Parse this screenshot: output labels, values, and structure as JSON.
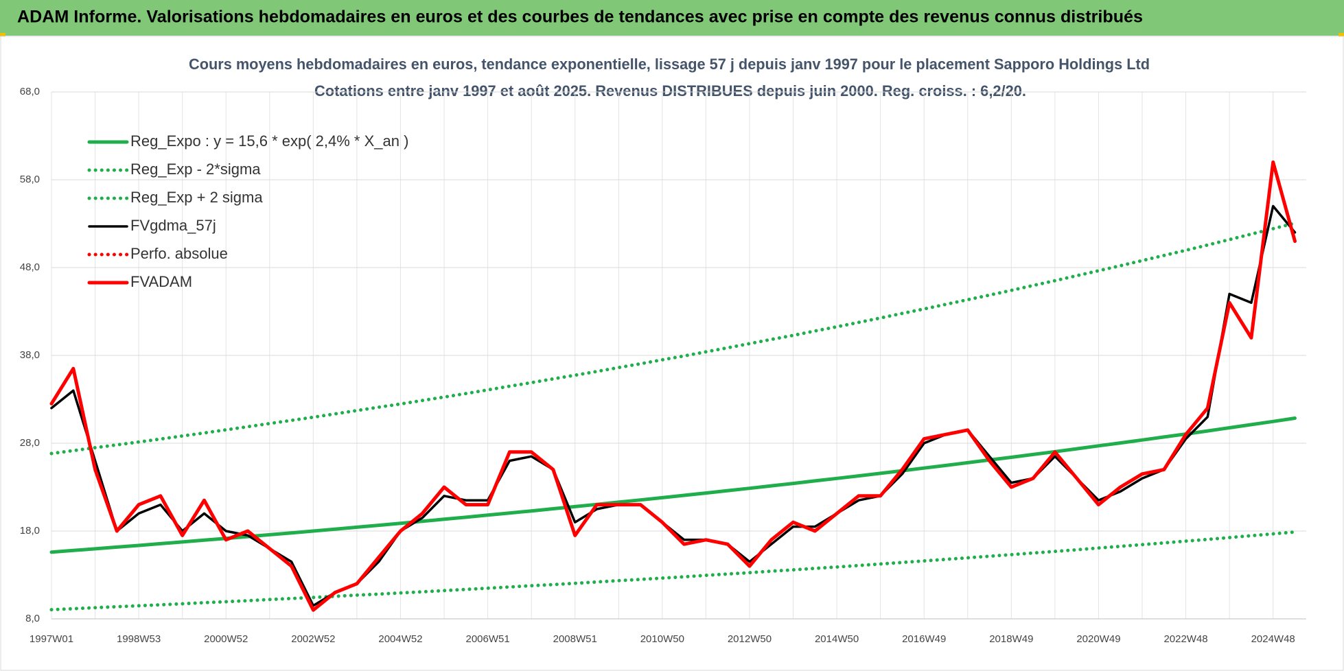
{
  "header": {
    "title": "ADAM Informe. Valorisations hebdomadaires en euros et des courbes de tendances avec prise en compte des revenus connus distribués"
  },
  "chart_data": {
    "type": "line",
    "title": "Cours moyens hebdomadaires en euros, tendance exponentielle, lissage 57 j depuis janv 1997 pour le placement Sapporo Holdings Ltd",
    "subtitle": "Cotations entre janv 1997 et août 2025.  Revenus DISTRIBUES depuis juin 2000.  Reg. croiss. : 6,2/20.",
    "categories": [
      "1997W01",
      null,
      null,
      null,
      "1998W53",
      null,
      null,
      null,
      "2000W52",
      null,
      null,
      null,
      "2002W52",
      null,
      null,
      null,
      "2004W52",
      null,
      null,
      null,
      "2006W51",
      null,
      null,
      null,
      "2008W51",
      null,
      null,
      null,
      "2010W50",
      null,
      null,
      null,
      "2012W50",
      null,
      null,
      null,
      "2014W50",
      null,
      null,
      null,
      "2016W49",
      null,
      null,
      null,
      "2018W49",
      null,
      null,
      null,
      "2020W49",
      null,
      null,
      null,
      "2022W48",
      null,
      null,
      null,
      "2024W48",
      null
    ],
    "ylim": [
      8,
      68
    ],
    "yticks": [
      {
        "value": 8,
        "label": "8,0"
      },
      {
        "value": 18,
        "label": "18,0"
      },
      {
        "value": 28,
        "label": "28,0"
      },
      {
        "value": 38,
        "label": "38,0"
      },
      {
        "value": 48,
        "label": "48,0"
      },
      {
        "value": 58,
        "label": "58,0"
      },
      {
        "value": 68,
        "label": "68,0"
      }
    ],
    "grid": true,
    "legend": "top-left",
    "series": [
      {
        "name": "Reg_Expo : y = 15,6 * exp( 2,4% *  X_an )",
        "color": "#1fae4b",
        "style": "solid",
        "values": [
          15.6,
          15.79,
          15.98,
          16.17,
          16.36,
          16.56,
          16.76,
          16.96,
          17.16,
          17.37,
          17.58,
          17.79,
          18.0,
          18.22,
          18.44,
          18.66,
          18.88,
          19.11,
          19.34,
          19.57,
          19.81,
          20.05,
          20.29,
          20.54,
          20.78,
          21.03,
          21.29,
          21.54,
          21.8,
          22.06,
          22.33,
          22.6,
          22.87,
          23.15,
          23.42,
          23.71,
          23.99,
          24.28,
          24.57,
          24.87,
          25.17,
          25.47,
          25.78,
          26.09,
          26.4,
          26.72,
          27.04,
          27.37,
          27.7,
          28.03,
          28.37,
          28.71,
          29.05,
          29.4,
          29.76,
          30.12,
          30.48,
          30.85
        ]
      },
      {
        "name": "Reg_Exp - 2*sigma",
        "color": "#1fae4b",
        "style": "dotted",
        "values": [
          9.05,
          9.16,
          9.27,
          9.38,
          9.49,
          9.6,
          9.72,
          9.84,
          9.95,
          10.07,
          10.2,
          10.32,
          10.44,
          10.57,
          10.7,
          10.82,
          10.95,
          11.08,
          11.22,
          11.35,
          11.49,
          11.63,
          11.77,
          11.91,
          12.05,
          12.2,
          12.35,
          12.49,
          12.64,
          12.79,
          12.95,
          13.11,
          13.26,
          13.43,
          13.58,
          13.75,
          13.91,
          14.08,
          14.25,
          14.42,
          14.6,
          14.77,
          14.95,
          15.13,
          15.31,
          15.5,
          15.68,
          15.87,
          16.07,
          16.26,
          16.45,
          16.65,
          16.85,
          17.05,
          17.26,
          17.47,
          17.68,
          17.89
        ]
      },
      {
        "name": "Reg_Exp + 2 sigma",
        "color": "#1fae4b",
        "style": "dotted",
        "values": [
          26.83,
          27.16,
          27.49,
          27.81,
          28.14,
          28.48,
          28.83,
          29.17,
          29.52,
          29.88,
          30.24,
          30.6,
          30.96,
          31.34,
          31.72,
          32.1,
          32.47,
          32.87,
          33.26,
          33.66,
          34.07,
          34.49,
          34.9,
          35.33,
          35.74,
          36.17,
          36.62,
          37.05,
          37.5,
          37.94,
          38.41,
          38.87,
          39.34,
          39.82,
          40.28,
          40.78,
          41.26,
          41.76,
          42.26,
          42.78,
          43.29,
          43.81,
          44.34,
          44.87,
          45.41,
          45.96,
          46.51,
          47.08,
          47.64,
          48.21,
          48.8,
          49.38,
          49.97,
          50.57,
          51.19,
          51.81,
          52.43,
          53.06
        ]
      },
      {
        "name": "FVgdma_57j",
        "color": "#000000",
        "style": "solid",
        "values": [
          32,
          34,
          26,
          18,
          20,
          21,
          18,
          20,
          18,
          17.5,
          16,
          14.5,
          9.5,
          11,
          12,
          14.5,
          18,
          19.5,
          22,
          21.5,
          21.5,
          26,
          26.5,
          25,
          19,
          20.5,
          21,
          21,
          19,
          17,
          17,
          16.5,
          14.5,
          16.5,
          18.5,
          18.5,
          20,
          21.5,
          22,
          24.5,
          28,
          29,
          29.5,
          26.5,
          23.5,
          24,
          26.5,
          24,
          21.5,
          22.5,
          24,
          25,
          28.5,
          31,
          45,
          44,
          55,
          52
        ]
      },
      {
        "name": "Perfo. absolue",
        "color": "#ff0000",
        "style": "dotted"
      },
      {
        "name": "FVADAM",
        "color": "#ff0000",
        "style": "solid",
        "values": [
          32.5,
          36.5,
          25,
          18,
          21,
          22,
          17.5,
          21.5,
          17,
          18,
          16,
          14,
          9,
          11,
          12,
          15,
          18,
          20,
          23,
          21,
          21,
          27,
          27,
          25,
          17.5,
          21,
          21,
          21,
          19,
          16.5,
          17,
          16.5,
          14,
          17,
          19,
          18,
          20,
          22,
          22,
          25,
          28.5,
          29,
          29.5,
          26,
          23,
          24,
          27,
          24,
          21,
          23,
          24.5,
          25,
          29,
          32,
          44,
          40,
          60,
          51
        ]
      }
    ]
  }
}
